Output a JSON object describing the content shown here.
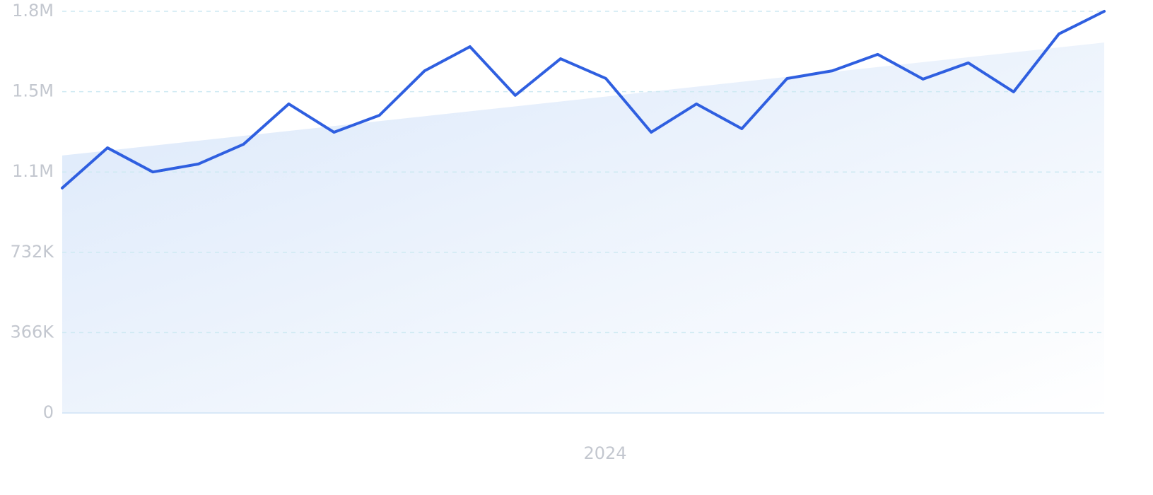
{
  "chart_data": {
    "type": "line",
    "xlabel": "2024",
    "values": [
      1025000,
      1208000,
      1098000,
      1134000,
      1224000,
      1408000,
      1279000,
      1356000,
      1559000,
      1669000,
      1447000,
      1614000,
      1524000,
      1279000,
      1408000,
      1295000,
      1524000,
      1559000,
      1634000,
      1521000,
      1595000,
      1463000,
      1727000,
      1830000
    ],
    "color": "#2f5fe0",
    "trend": [
      1173000,
      1688000
    ],
    "trend_color": "#dbe8fa",
    "ylim": [
      0,
      1830000
    ],
    "yticks": [
      0,
      {
        "value": 366000,
        "label": "366K"
      },
      {
        "value": 732000,
        "label": "732K"
      },
      {
        "value": 1098000,
        "label": "1.1M"
      },
      {
        "value": 1464000,
        "label": "1.5M"
      },
      {
        "value": 1830000,
        "label": "1.8M"
      }
    ],
    "grid": true
  }
}
